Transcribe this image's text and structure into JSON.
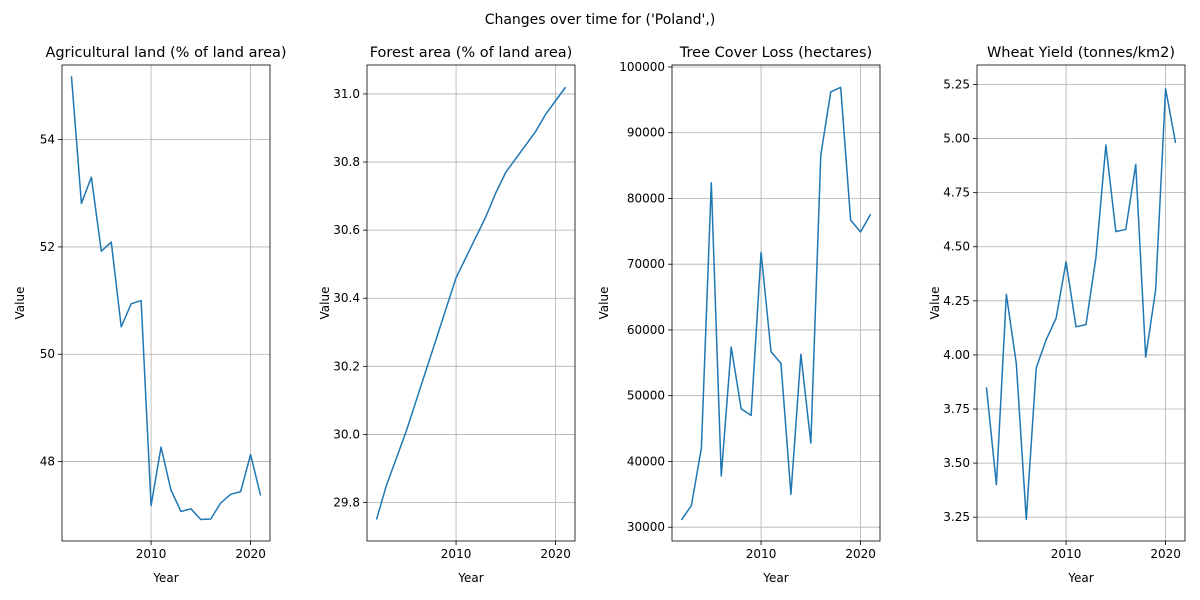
{
  "suptitle": "Changes over time for ('Poland',)",
  "chart_data": [
    {
      "type": "line",
      "title": "Agricultural land (% of land area)",
      "xlabel": "Year",
      "ylabel": "Value",
      "grid": true,
      "line_color": "#1f77b4",
      "xlim": [
        2001.05,
        2021.95
      ],
      "ylim": [
        46.52,
        55.39
      ],
      "xticks": [
        2010,
        2020
      ],
      "yticks": [
        48,
        50,
        52,
        54
      ],
      "ytick_labels": [
        "48",
        "50",
        "52",
        "54"
      ],
      "x": [
        2002,
        2003,
        2004,
        2005,
        2006,
        2007,
        2008,
        2009,
        2010,
        2011,
        2012,
        2013,
        2014,
        2015,
        2016,
        2017,
        2018,
        2019,
        2020,
        2021
      ],
      "series": [
        {
          "values": [
            55.18,
            52.81,
            53.3,
            51.92,
            52.09,
            50.51,
            50.94,
            51.0,
            47.18,
            48.27,
            47.47,
            47.07,
            47.12,
            46.92,
            46.93,
            47.23,
            47.39,
            47.44,
            48.13,
            47.37
          ]
        }
      ]
    },
    {
      "type": "line",
      "title": "Forest area (% of land area)",
      "xlabel": "Year",
      "ylabel": "Value",
      "grid": true,
      "line_color": "#1f77b4",
      "xlim": [
        2001.05,
        2021.95
      ],
      "ylim": [
        29.687,
        31.085
      ],
      "xticks": [
        2010,
        2020
      ],
      "yticks": [
        29.8,
        30.0,
        30.2,
        30.4,
        30.6,
        30.8,
        31.0
      ],
      "ytick_labels": [
        "29.8",
        "30.0",
        "30.2",
        "30.4",
        "30.6",
        "30.8",
        "31.0"
      ],
      "x": [
        2002,
        2003,
        2004,
        2005,
        2006,
        2007,
        2008,
        2009,
        2010,
        2011,
        2012,
        2013,
        2014,
        2015,
        2016,
        2017,
        2018,
        2019,
        2020,
        2021
      ],
      "series": [
        {
          "values": [
            29.75,
            29.85,
            29.93,
            30.01,
            30.1,
            30.19,
            30.28,
            30.37,
            30.46,
            30.52,
            30.58,
            30.64,
            30.71,
            30.77,
            30.81,
            30.85,
            30.89,
            30.94,
            30.98,
            31.02
          ]
        }
      ]
    },
    {
      "type": "line",
      "title": "Tree Cover Loss (hectares)",
      "xlabel": "Year",
      "ylabel": "Value",
      "grid": true,
      "line_color": "#1f77b4",
      "xlim": [
        2001.05,
        2021.95
      ],
      "ylim": [
        27900,
        100300
      ],
      "xticks": [
        2010,
        2020
      ],
      "yticks": [
        30000,
        40000,
        50000,
        60000,
        70000,
        80000,
        90000,
        100000
      ],
      "ytick_labels": [
        "30000",
        "40000",
        "50000",
        "60000",
        "70000",
        "80000",
        "90000",
        "100000"
      ],
      "x": [
        2002,
        2003,
        2004,
        2005,
        2006,
        2007,
        2008,
        2009,
        2010,
        2011,
        2012,
        2013,
        2014,
        2015,
        2016,
        2017,
        2018,
        2019,
        2020,
        2021
      ],
      "series": [
        {
          "values": [
            31100,
            33300,
            42000,
            82400,
            37800,
            57400,
            48000,
            47000,
            71800,
            56700,
            54900,
            35000,
            56300,
            42800,
            86600,
            96200,
            96900,
            76700,
            74900,
            77600
          ]
        }
      ]
    },
    {
      "type": "line",
      "title": "Wheat Yield (tonnes/km2)",
      "xlabel": "Year",
      "ylabel": "Value",
      "grid": true,
      "line_color": "#1f77b4",
      "xlim": [
        2001.05,
        2021.95
      ],
      "ylim": [
        3.14,
        5.34
      ],
      "xticks": [
        2010,
        2020
      ],
      "yticks": [
        3.25,
        3.5,
        3.75,
        4.0,
        4.25,
        4.5,
        4.75,
        5.0,
        5.25
      ],
      "ytick_labels": [
        "3.25",
        "3.50",
        "3.75",
        "4.00",
        "4.25",
        "4.50",
        "4.75",
        "5.00",
        "5.25"
      ],
      "x": [
        2002,
        2003,
        2004,
        2005,
        2006,
        2007,
        2008,
        2009,
        2010,
        2011,
        2012,
        2013,
        2014,
        2015,
        2016,
        2017,
        2018,
        2019,
        2020,
        2021
      ],
      "series": [
        {
          "values": [
            3.85,
            3.4,
            4.28,
            3.96,
            3.24,
            3.94,
            4.07,
            4.17,
            4.43,
            4.13,
            4.14,
            4.45,
            4.97,
            4.57,
            4.58,
            4.88,
            3.99,
            4.3,
            5.23,
            4.98
          ]
        }
      ]
    }
  ]
}
